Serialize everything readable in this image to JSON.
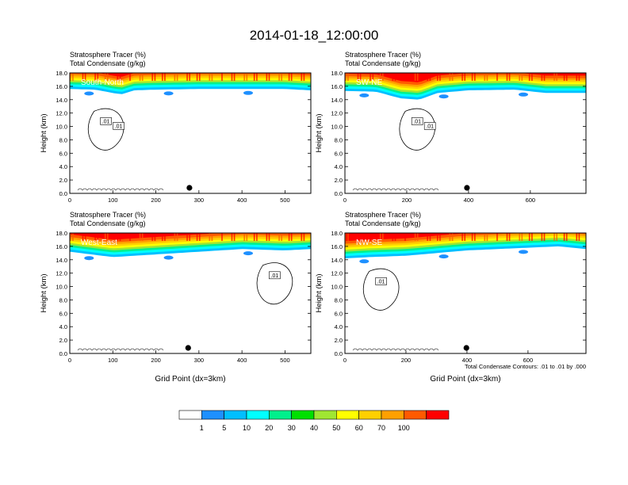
{
  "figure": {
    "title": "2014-01-18_12:00:00",
    "bottom_note": "Total Condensate Contours: .01 to .01 by .000"
  },
  "chart_data": [
    {
      "type": "heatmap",
      "cross_section": "South-North",
      "title_line1": "Stratosphere Tracer   (%)",
      "title_line2": "Total Condensate   (g/kg)",
      "xlabel": "",
      "ylabel": "Height (km)",
      "xlim": [
        0,
        560
      ],
      "ylim": [
        0,
        18
      ],
      "x_ticks": [
        0,
        100,
        200,
        300,
        400,
        500
      ],
      "y_ticks": [
        "0.0",
        "2.0",
        "4.0",
        "6.0",
        "8.0",
        "10.0",
        "12.0",
        "14.0",
        "16.0",
        "18.0"
      ],
      "tracer_boundary_km": [
        [
          0,
          15.6
        ],
        [
          60,
          15.5
        ],
        [
          100,
          15.0
        ],
        [
          120,
          14.8
        ],
        [
          150,
          15.4
        ],
        [
          200,
          15.5
        ],
        [
          300,
          15.6
        ],
        [
          400,
          15.6
        ],
        [
          500,
          15.6
        ],
        [
          560,
          15.4
        ]
      ],
      "contour_labels": [
        ".01",
        ".01"
      ],
      "marker_x": 278
    },
    {
      "type": "heatmap",
      "cross_section": "SW-NE",
      "title_line1": "Stratosphere Tracer   (%)",
      "title_line2": "Total Condensate   (g/kg)",
      "xlabel": "",
      "ylabel": "Height (km)",
      "xlim": [
        0,
        780
      ],
      "ylim": [
        0,
        18
      ],
      "x_ticks": [
        0,
        200,
        400,
        600
      ],
      "y_ticks": [
        "0.0",
        "2.0",
        "4.0",
        "6.0",
        "8.0",
        "10.0",
        "12.0",
        "14.0",
        "16.0",
        "18.0"
      ],
      "tracer_boundary_km": [
        [
          0,
          15.3
        ],
        [
          100,
          15.2
        ],
        [
          180,
          14.2
        ],
        [
          240,
          14.0
        ],
        [
          300,
          15.0
        ],
        [
          400,
          15.4
        ],
        [
          550,
          15.5
        ],
        [
          650,
          15.0
        ],
        [
          780,
          15.0
        ]
      ],
      "contour_labels": [
        ".01",
        ".01"
      ],
      "marker_x": 395
    },
    {
      "type": "heatmap",
      "cross_section": "West-East",
      "title_line1": "Stratosphere Tracer   (%)",
      "title_line2": "Total Condensate   (g/kg)",
      "xlabel": "Grid Point (dx=3km)",
      "ylabel": "Height (km)",
      "xlim": [
        0,
        560
      ],
      "ylim": [
        0,
        18
      ],
      "x_ticks": [
        0,
        100,
        200,
        300,
        400,
        500
      ],
      "y_ticks": [
        "0.0",
        "2.0",
        "4.0",
        "6.0",
        "8.0",
        "10.0",
        "12.0",
        "14.0",
        "16.0",
        "18.0"
      ],
      "tracer_boundary_km": [
        [
          0,
          15.2
        ],
        [
          100,
          14.4
        ],
        [
          200,
          14.8
        ],
        [
          300,
          15.2
        ],
        [
          400,
          15.6
        ],
        [
          500,
          15.4
        ],
        [
          560,
          15.6
        ]
      ],
      "contour_labels": [
        ".01"
      ],
      "marker_x": 275
    },
    {
      "type": "heatmap",
      "cross_section": "NW-SE",
      "title_line1": "Stratosphere Tracer   (%)",
      "title_line2": "Total Condensate   (g/kg)",
      "xlabel": "Grid Point (dx=3km)",
      "ylabel": "Height (km)",
      "xlim": [
        0,
        790
      ],
      "ylim": [
        0,
        18
      ],
      "x_ticks": [
        0,
        200,
        400,
        600
      ],
      "y_ticks": [
        "0.0",
        "2.0",
        "4.0",
        "6.0",
        "8.0",
        "10.0",
        "12.0",
        "14.0",
        "16.0",
        "18.0"
      ],
      "tracer_boundary_km": [
        [
          0,
          14.2
        ],
        [
          80,
          14.4
        ],
        [
          200,
          14.6
        ],
        [
          300,
          15.0
        ],
        [
          400,
          15.4
        ],
        [
          500,
          15.6
        ],
        [
          600,
          15.8
        ],
        [
          700,
          16.0
        ],
        [
          790,
          15.6
        ]
      ],
      "contour_labels": [
        ".01"
      ],
      "marker_x": 398
    }
  ],
  "colorbar": {
    "labels": [
      "1",
      "5",
      "10",
      "20",
      "30",
      "40",
      "50",
      "60",
      "70",
      "100"
    ],
    "colors": [
      "#ffffff",
      "#1e90ff",
      "#00bfff",
      "#00ffff",
      "#00f08c",
      "#00e000",
      "#a0e632",
      "#ffff00",
      "#ffd000",
      "#ffa000",
      "#ff5a00",
      "#ff0000"
    ]
  }
}
